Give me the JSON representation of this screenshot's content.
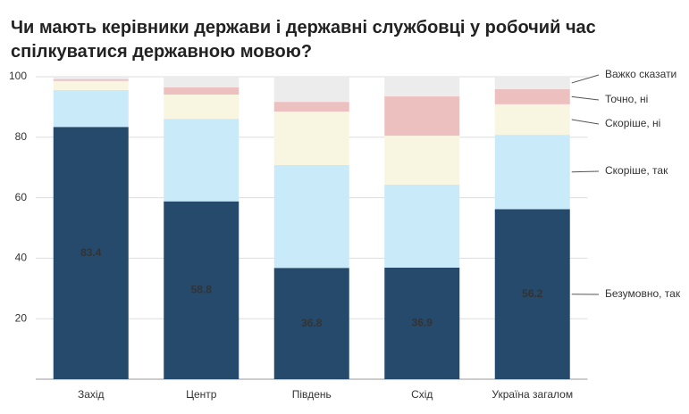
{
  "chart_data": {
    "type": "stacked_bar",
    "title": "Чи мають керівники держави і державні службовці у робочий час спілкуватися державною мовою?",
    "categories": [
      "Захід",
      "Центр",
      "Південь",
      "Схід",
      "Україна загалом"
    ],
    "series": [
      {
        "name": "Безумовно, так",
        "color": "#264a6b",
        "values": [
          83.4,
          58.8,
          36.8,
          36.9,
          56.2
        ],
        "data_labels": true
      },
      {
        "name": "Скоріше, так",
        "color": "#c9ebf9",
        "values": [
          12.2,
          27.3,
          34.0,
          27.4,
          24.6
        ]
      },
      {
        "name": "Скоріше, ні",
        "color": "#f8f6e0",
        "values": [
          3.0,
          8.0,
          17.7,
          16.2,
          10.1
        ]
      },
      {
        "name": "Точно, ні",
        "color": "#edc0c0",
        "values": [
          0.6,
          2.4,
          3.2,
          13.0,
          5.0
        ]
      },
      {
        "name": "Важко сказати",
        "color": "#ececec",
        "values": [
          0.8,
          3.5,
          8.3,
          6.5,
          4.1
        ]
      }
    ],
    "ylim": [
      0,
      100
    ],
    "yticks": [
      20,
      40,
      60,
      80,
      100
    ],
    "grid": true
  }
}
